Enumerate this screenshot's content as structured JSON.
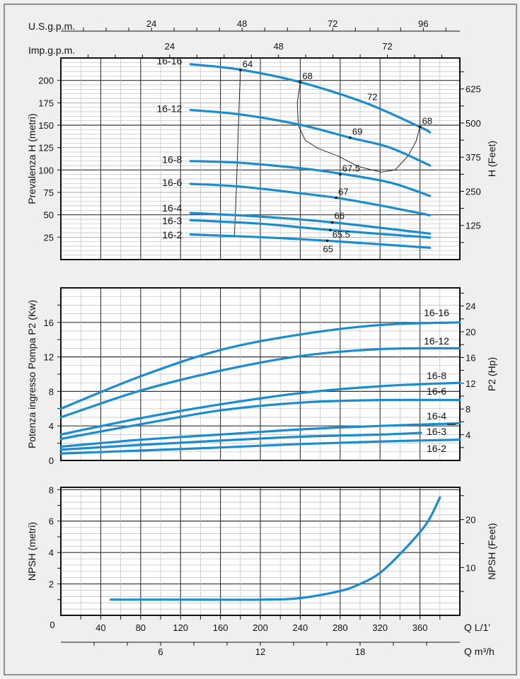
{
  "colors": {
    "curve": "#1a8dcf",
    "grid_major": "#333333",
    "grid_minor": "#bdbdbd",
    "background": "#efefef",
    "plot_bg": "#ffffff",
    "efficiency_line": "#111111"
  },
  "x_axis": {
    "xlim": [
      0,
      400
    ],
    "label_lmin": "Q L/1'",
    "zero_label": "0",
    "ticks_lmin": [
      40,
      80,
      120,
      160,
      200,
      240,
      280,
      320,
      360
    ],
    "label_m3h": "Q m³/h",
    "ticks_m3h": [
      6,
      12,
      18
    ],
    "label_usgpm": "U.S.g.p.m.",
    "ticks_usgpm": [
      24,
      48,
      72,
      96
    ],
    "label_impgpm": "Imp.g.p.m.",
    "ticks_impgpm": [
      24,
      48,
      72
    ]
  },
  "chart_data": [
    {
      "type": "line",
      "ylabel": "Prevalenza H (metri)",
      "ylabel_right": "H (Feet)",
      "ylim": [
        0,
        225
      ],
      "yticks": [
        25,
        50,
        75,
        100,
        125,
        150,
        175,
        200
      ],
      "yticks_right": [
        125,
        250,
        375,
        500,
        625
      ],
      "grid": true,
      "series": [
        {
          "name": "16-16",
          "x": [
            130,
            180,
            240,
            305,
            360,
            370
          ],
          "y": [
            218,
            212,
            198,
            175,
            148,
            142
          ]
        },
        {
          "name": "16-12",
          "x": [
            130,
            180,
            240,
            290,
            330,
            370
          ],
          "y": [
            167,
            162,
            150.5,
            136,
            125,
            105
          ]
        },
        {
          "name": "16-8",
          "x": [
            130,
            180,
            240,
            280,
            330,
            370
          ],
          "y": [
            110,
            108,
            102,
            96,
            86,
            71
          ]
        },
        {
          "name": "16-6",
          "x": [
            130,
            180,
            240,
            276,
            320,
            370
          ],
          "y": [
            84.5,
            81.5,
            74,
            69,
            60.5,
            49.5
          ]
        },
        {
          "name": "16-4",
          "x": [
            130,
            200,
            272,
            370
          ],
          "y": [
            52,
            48,
            41.5,
            29
          ]
        },
        {
          "name": "16-3",
          "x": [
            130,
            200,
            270,
            370
          ],
          "y": [
            44,
            40,
            33,
            24.6
          ]
        },
        {
          "name": "16-2",
          "x": [
            130,
            200,
            267,
            370
          ],
          "y": [
            28,
            25,
            21,
            13.2
          ]
        }
      ],
      "efficiency_points": [
        {
          "x": 180,
          "y": 211.6,
          "label": "64"
        },
        {
          "x": 240,
          "y": 198,
          "label": "68"
        },
        {
          "x": 305,
          "y": 175,
          "label": "72"
        },
        {
          "x": 360,
          "y": 148,
          "label": "68"
        },
        {
          "x": 290,
          "y": 136,
          "label": "69"
        },
        {
          "x": 280,
          "y": 95,
          "label": "67.5"
        },
        {
          "x": 276,
          "y": 69,
          "label": "67"
        },
        {
          "x": 272,
          "y": 41.5,
          "label": "66"
        },
        {
          "x": 270,
          "y": 33,
          "label": "65.5"
        },
        {
          "x": 267,
          "y": 21,
          "label": "65"
        }
      ],
      "efficiency_lines": [
        {
          "x": [
            180,
            178,
            176,
            174
          ],
          "y": [
            211.6,
            150,
            80,
            26
          ]
        },
        {
          "x": [
            240,
            237,
            238,
            245,
            258,
            278,
            298,
            321,
            335,
            348,
            356,
            360
          ],
          "y": [
            198,
            175,
            150,
            133,
            124,
            115.6,
            104,
            97.6,
            100,
            115.6,
            132,
            148
          ]
        }
      ]
    },
    {
      "type": "line",
      "ylabel": "Potenza ingresso Pompa P2 (Kw)",
      "ylabel_right": "P2 (Hp)",
      "ylim": [
        0,
        20
      ],
      "yticks": [
        0,
        4,
        8,
        12,
        16
      ],
      "yticks_right": [
        4,
        8,
        12,
        16,
        20,
        24
      ],
      "grid": true,
      "series": [
        {
          "name": "16-16",
          "x": [
            0,
            80,
            160,
            240,
            320,
            400
          ],
          "y": [
            6.0,
            9.75,
            12.8,
            14.6,
            15.7,
            16.0
          ]
        },
        {
          "name": "16-12",
          "x": [
            0,
            80,
            160,
            240,
            320,
            400
          ],
          "y": [
            5.0,
            8.1,
            10.4,
            12.1,
            12.9,
            13.0
          ]
        },
        {
          "name": "16-8",
          "x": [
            0,
            80,
            160,
            240,
            320,
            400
          ],
          "y": [
            3.0,
            4.9,
            6.5,
            7.8,
            8.6,
            9.0
          ]
        },
        {
          "name": "16-6",
          "x": [
            0,
            80,
            160,
            240,
            320,
            400
          ],
          "y": [
            2.5,
            4.2,
            5.8,
            6.7,
            7.0,
            7.0
          ]
        },
        {
          "name": "16-4",
          "x": [
            0,
            80,
            160,
            240,
            320,
            400
          ],
          "y": [
            1.6,
            2.4,
            3.0,
            3.6,
            4.0,
            4.3
          ]
        },
        {
          "name": "16-3",
          "x": [
            0,
            80,
            160,
            240,
            320,
            361
          ],
          "y": [
            1.25,
            1.8,
            2.3,
            2.75,
            3.0,
            3.2
          ]
        },
        {
          "name": "16-2",
          "x": [
            0,
            80,
            160,
            240,
            320,
            400
          ],
          "y": [
            0.8,
            1.15,
            1.5,
            1.9,
            2.2,
            2.4
          ]
        }
      ]
    },
    {
      "type": "line",
      "ylabel": "NPSH (metri)",
      "ylabel_right": "NPSH (Feet)",
      "ylim": [
        0,
        8
      ],
      "yticks": [
        2,
        4,
        6,
        8
      ],
      "yticks_right": [
        10,
        20
      ],
      "grid": true,
      "series": [
        {
          "x": [
            50,
            120,
            200,
            240,
            280,
            300,
            320,
            340,
            360,
            370,
            380
          ],
          "y": [
            1.0,
            1.0,
            1.0,
            1.1,
            1.55,
            2.0,
            2.7,
            3.9,
            5.3,
            6.2,
            7.5
          ]
        }
      ]
    }
  ]
}
